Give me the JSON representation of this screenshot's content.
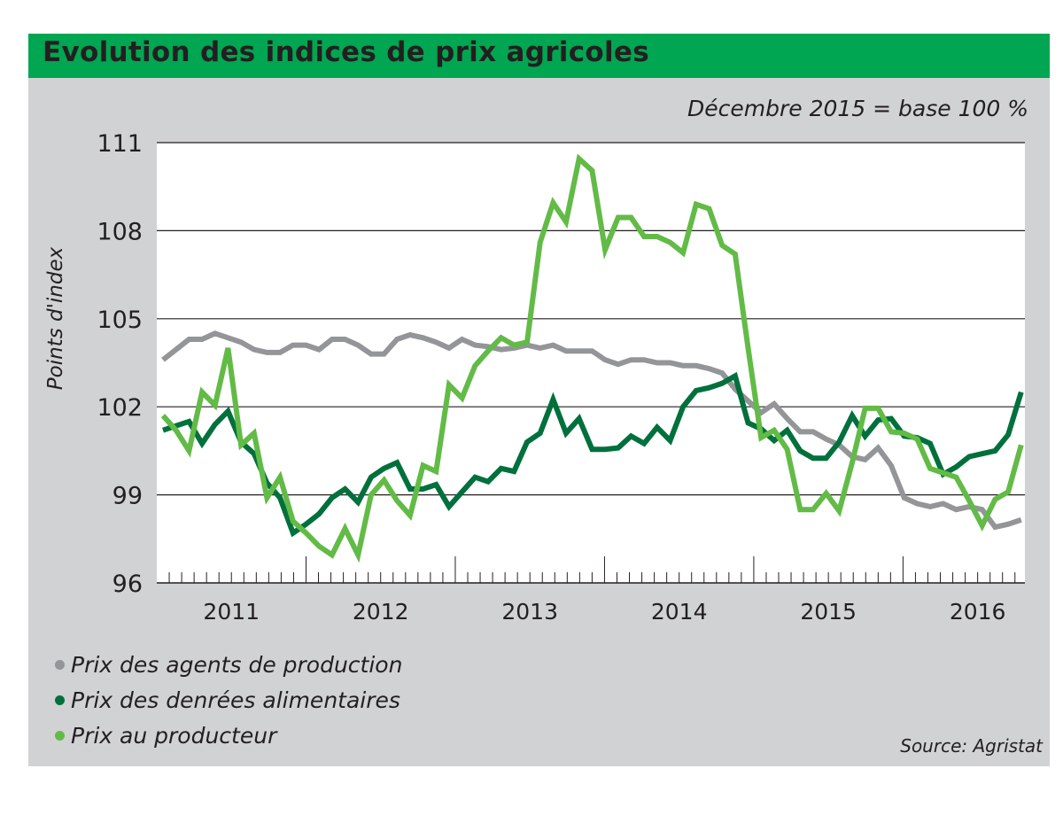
{
  "chart_data": {
    "type": "line",
    "title": "Evolution des indices de prix agricoles",
    "subtitle": "Décembre 2015 = base 100 %",
    "ylabel": "Points d'index",
    "xlabel": "",
    "ylim": [
      96,
      111
    ],
    "yticks": [
      111,
      108,
      105,
      102,
      99,
      96
    ],
    "x_range": [
      "2011-01",
      "2016-10"
    ],
    "x_year_labels": [
      "2011",
      "2012",
      "2013",
      "2014",
      "2015",
      "2016"
    ],
    "grid": true,
    "legend_position": "bottom-left",
    "source": "Source: Agristat",
    "series": [
      {
        "name": "Prix des agents de production",
        "color": "#939598",
        "values": [
          103.6,
          103.95,
          104.3,
          104.3,
          104.5,
          104.35,
          104.2,
          103.95,
          103.85,
          103.85,
          104.1,
          104.1,
          103.95,
          104.3,
          104.3,
          104.1,
          103.8,
          103.8,
          104.3,
          104.45,
          104.35,
          104.2,
          104.0,
          104.3,
          104.1,
          104.05,
          103.95,
          104.0,
          104.1,
          104.0,
          104.1,
          103.9,
          103.9,
          103.9,
          103.6,
          103.45,
          103.6,
          103.6,
          103.5,
          103.5,
          103.4,
          103.4,
          103.3,
          103.15,
          102.6,
          102.2,
          101.8,
          102.1,
          101.6,
          101.15,
          101.15,
          100.9,
          100.7,
          100.3,
          100.2,
          100.6,
          100.0,
          98.9,
          98.7,
          98.6,
          98.7,
          98.5,
          98.6,
          98.5,
          97.9,
          98.0,
          98.15
        ]
      },
      {
        "name": "Prix des denrées alimentaires",
        "color": "#00703c",
        "values": [
          101.2,
          101.35,
          101.5,
          100.75,
          101.4,
          101.85,
          100.8,
          100.4,
          99.4,
          98.9,
          97.7,
          98.0,
          98.35,
          98.9,
          99.2,
          98.75,
          99.6,
          99.9,
          100.1,
          99.2,
          99.2,
          99.35,
          98.6,
          99.1,
          99.6,
          99.45,
          99.9,
          99.8,
          100.8,
          101.1,
          102.25,
          101.1,
          101.6,
          100.55,
          100.55,
          100.6,
          101.0,
          100.75,
          101.3,
          100.85,
          102.0,
          102.55,
          102.65,
          102.8,
          103.05,
          101.45,
          101.25,
          100.85,
          101.2,
          100.5,
          100.25,
          100.25,
          100.8,
          101.7,
          101.0,
          101.55,
          101.6,
          101.0,
          100.95,
          100.75,
          99.7,
          99.95,
          100.3,
          100.4,
          100.5,
          101.05,
          102.5
        ]
      },
      {
        "name": "Prix au producteur",
        "color": "#62bb46",
        "values": [
          101.7,
          101.2,
          100.5,
          102.5,
          102.05,
          104.0,
          100.7,
          101.1,
          98.9,
          99.6,
          98.1,
          97.7,
          97.25,
          96.95,
          97.85,
          96.95,
          99.0,
          99.5,
          98.8,
          98.3,
          100.0,
          99.8,
          102.75,
          102.3,
          103.4,
          103.9,
          104.35,
          104.1,
          104.2,
          107.6,
          108.95,
          108.3,
          110.45,
          110.05,
          107.35,
          108.45,
          108.45,
          107.8,
          107.8,
          107.6,
          107.25,
          108.9,
          108.75,
          107.5,
          107.2,
          104.0,
          100.95,
          101.2,
          100.55,
          98.5,
          98.5,
          99.05,
          98.45,
          100.1,
          101.95,
          101.95,
          101.15,
          101.1,
          100.9,
          99.9,
          99.75,
          99.6,
          98.8,
          97.95,
          98.85,
          99.1,
          100.7
        ]
      }
    ]
  }
}
